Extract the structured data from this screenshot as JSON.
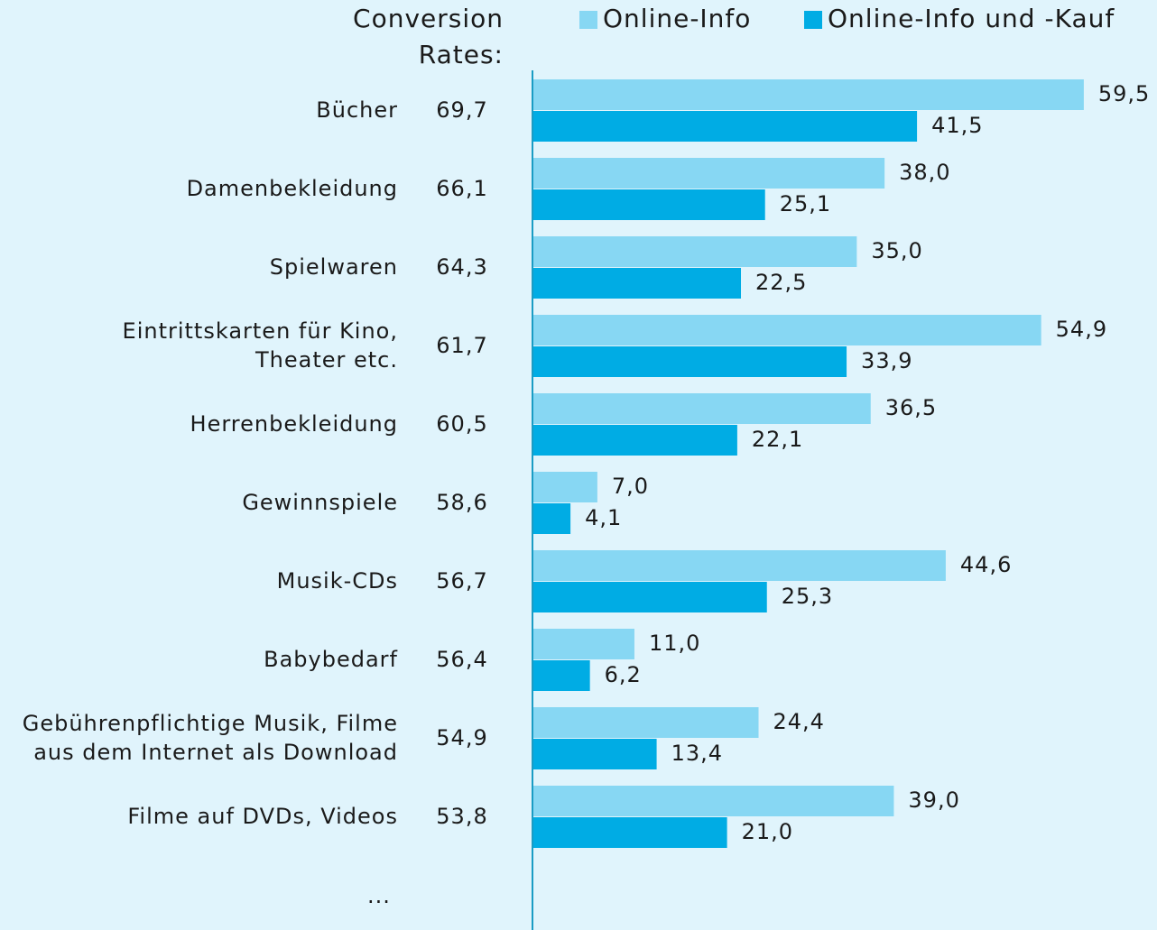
{
  "chart_data": {
    "type": "bar",
    "orientation": "horizontal",
    "conversion_header": [
      "Conversion",
      "Rates:"
    ],
    "categories": [
      [
        "Bücher"
      ],
      [
        "Damenbekleidung"
      ],
      [
        "Spielwaren"
      ],
      [
        "Eintrittskarten für Kino,",
        "Theater etc."
      ],
      [
        "Herrenbekleidung"
      ],
      [
        "Gewinnspiele"
      ],
      [
        "Musik-CDs"
      ],
      [
        "Babybedarf"
      ],
      [
        "Gebührenpflichtige Musik, Filme",
        "aus dem Internet als Download"
      ],
      [
        "Filme auf DVDs, Videos"
      ]
    ],
    "conversion_rates": {
      "values": [
        69.7,
        66.1,
        64.3,
        61.7,
        60.5,
        58.6,
        56.7,
        56.4,
        54.9,
        53.8
      ],
      "value_labels": [
        "69,7",
        "66,1",
        "64,3",
        "61,7",
        "60,5",
        "58,6",
        "56,7",
        "56,4",
        "54,9",
        "53,8"
      ]
    },
    "series": [
      {
        "name": "Online-Info",
        "color": "#87d7f3",
        "values": [
          59.5,
          38.0,
          35.0,
          54.9,
          36.5,
          7.0,
          44.6,
          11.0,
          24.4,
          39.0
        ],
        "value_labels": [
          "59,5",
          "38,0",
          "35,0",
          "54,9",
          "36,5",
          "7,0",
          "44,6",
          "11,0",
          "24,4",
          "39,0"
        ]
      },
      {
        "name": "Online-Info und -Kauf",
        "color": "#00ace4",
        "values": [
          41.5,
          25.1,
          22.5,
          33.9,
          22.1,
          4.1,
          25.3,
          6.2,
          13.4,
          21.0
        ],
        "value_labels": [
          "41,5",
          "25,1",
          "22,5",
          "33,9",
          "22,1",
          "4,1",
          "25,3",
          "6,2",
          "13,4",
          "21,0"
        ]
      }
    ],
    "footnote": "...",
    "xlim": [
      0,
      67.4
    ],
    "axis_color": "#1a9cc4",
    "background": "#e0f4fc"
  }
}
